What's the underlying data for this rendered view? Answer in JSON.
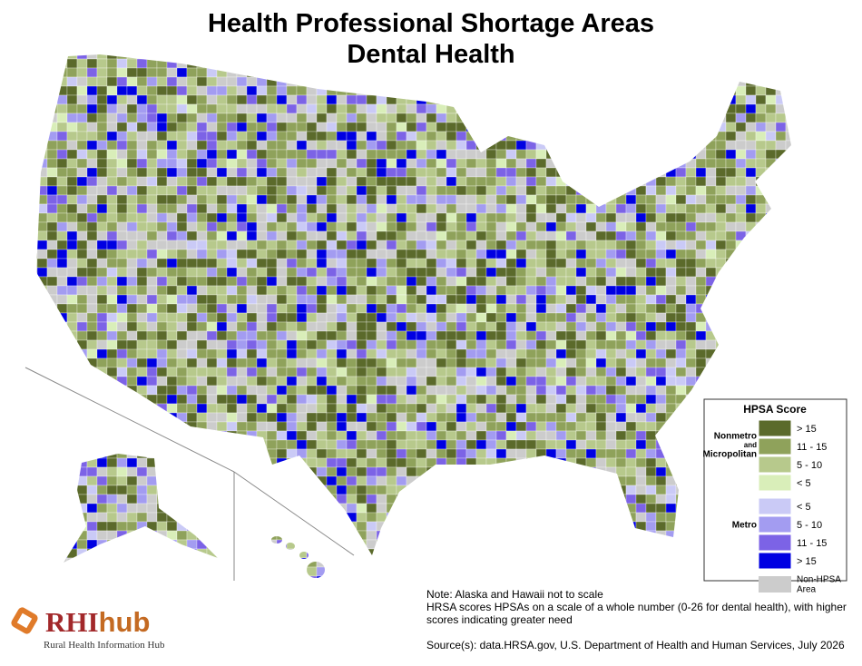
{
  "header": {
    "title": [
      "Health Professional Shortage Areas",
      "Dental Health"
    ]
  },
  "legend": {
    "title": "HPSA Score",
    "groups": [
      {
        "label": [
          "Nonmetro",
          "and",
          "Micropolitan"
        ],
        "items": [
          {
            "label": "> 15",
            "color": "#5b6a2b"
          },
          {
            "label": "11 - 15",
            "color": "#8fa25b"
          },
          {
            "label": "5 - 10",
            "color": "#b7c98c"
          },
          {
            "label": "< 5",
            "color": "#d9eeb9"
          }
        ]
      },
      {
        "label": [
          "Metro"
        ],
        "items": [
          {
            "label": "< 5",
            "color": "#cacaf6"
          },
          {
            "label": "5 - 10",
            "color": "#a39cf1"
          },
          {
            "label": "11 - 15",
            "color": "#7c63e6"
          },
          {
            "label": "> 15",
            "color": "#0000e2"
          }
        ]
      }
    ],
    "other": {
      "label": [
        "Non-HPSA",
        "Area"
      ],
      "color": "#cccccc"
    }
  },
  "notes": [
    "Note: Alaska and Hawaii not to scale",
    "HRSA scores HPSAs on a scale of a whole number (0-26 for dental health), with higher scores indicating greater need"
  ],
  "source": "Source(s): data.HRSA.gov, U.S. Department of Health and Human Services, July 2026",
  "logo": {
    "name": [
      "RHI",
      "hub"
    ],
    "subtitle": "Rural Health Information Hub"
  }
}
